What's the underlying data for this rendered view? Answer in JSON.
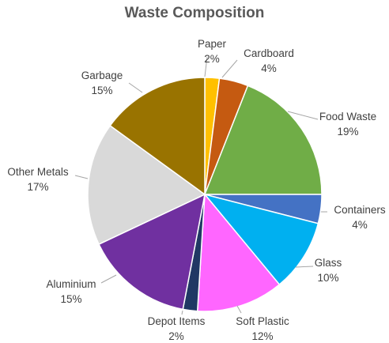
{
  "chart_data": {
    "type": "pie",
    "title": "Waste Composition",
    "slices": [
      {
        "name": "Paper",
        "value": 2,
        "label": "2%",
        "color": "#FFC000"
      },
      {
        "name": "Cardboard",
        "value": 4,
        "label": "4%",
        "color": "#C55A11"
      },
      {
        "name": "Food Waste",
        "value": 19,
        "label": "19%",
        "color": "#70AD47"
      },
      {
        "name": "Containers",
        "value": 4,
        "label": "4%",
        "color": "#4472C4"
      },
      {
        "name": "Glass",
        "value": 10,
        "label": "10%",
        "color": "#00B0F0"
      },
      {
        "name": "Soft Plastic",
        "value": 12,
        "label": "12%",
        "color": "#FF66FF"
      },
      {
        "name": "Depot Items",
        "value": 2,
        "label": "2%",
        "color": "#203864"
      },
      {
        "name": "Aluminium",
        "value": 15,
        "label": "15%",
        "color": "#7030A0"
      },
      {
        "name": "Other Metals",
        "value": 17,
        "label": "17%",
        "color": "#D9D9D9"
      },
      {
        "name": "Garbage",
        "value": 15,
        "label": "15%",
        "color": "#997300"
      }
    ]
  }
}
